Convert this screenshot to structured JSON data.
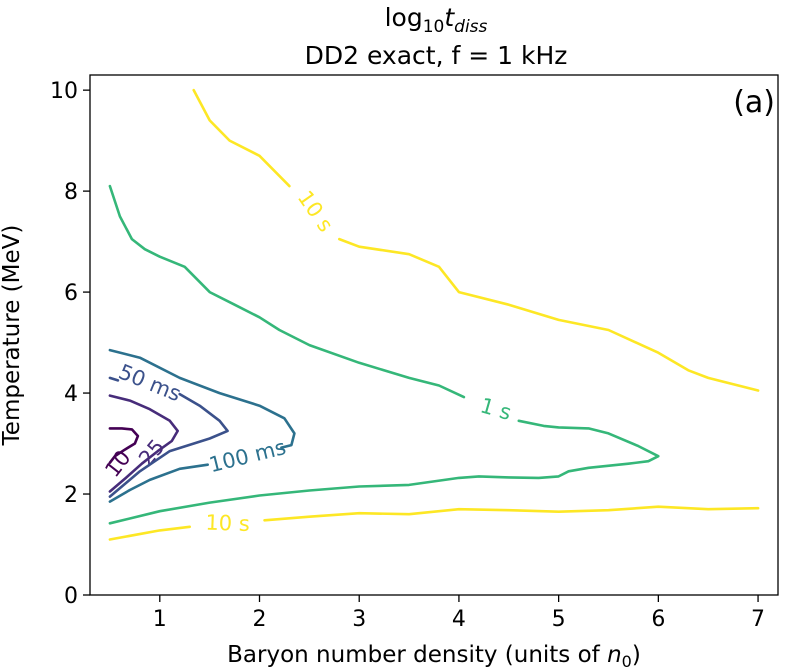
{
  "chart_data": {
    "type": "contour",
    "title": "log10 t_diss",
    "title_parts": {
      "prefix": "log",
      "base": "10",
      "symbol": "t",
      "subscript": "diss"
    },
    "subtitle": "DD2 exact, f = 1 kHz",
    "panel_label": "(a)",
    "xlabel": "Baryon number density (units of n0)",
    "xlabel_parts": {
      "text": "Baryon number density (units of ",
      "symbol": "n",
      "subscript": "0",
      "suffix": ")"
    },
    "ylabel": "Temperature (MeV)",
    "xlim": [
      0.3,
      7.2
    ],
    "ylim": [
      0,
      10.3
    ],
    "xticks": [
      1,
      2,
      3,
      4,
      5,
      6,
      7
    ],
    "yticks": [
      0,
      2,
      4,
      6,
      8,
      10
    ],
    "grid": false,
    "colormap": "viridis",
    "levels": [
      {
        "name": "10 ms",
        "label": "10",
        "color": "#440154",
        "paths": [
          [
            [
              0.5,
              3.3
            ],
            [
              0.62,
              3.3
            ],
            [
              0.72,
              3.28
            ],
            [
              0.78,
              3.15
            ],
            [
              0.75,
              3.0
            ],
            [
              0.65,
              2.88
            ],
            [
              0.55,
              2.75
            ],
            [
              0.5,
              2.62
            ]
          ]
        ],
        "label_pos": [
          0.58,
          2.6
        ],
        "label_angle": -52
      },
      {
        "name": "25 ms",
        "label": "25",
        "color": "#472c7a",
        "paths": [
          [
            [
              0.5,
              3.95
            ],
            [
              0.7,
              3.85
            ],
            [
              0.9,
              3.68
            ],
            [
              1.1,
              3.45
            ],
            [
              1.18,
              3.25
            ],
            [
              1.12,
              3.05
            ],
            [
              0.98,
              2.85
            ],
            [
              0.82,
              2.6
            ],
            [
              0.66,
              2.32
            ],
            [
              0.5,
              2.05
            ]
          ]
        ],
        "label_pos": [
          0.92,
          2.82
        ],
        "label_angle": -50
      },
      {
        "name": "50 ms",
        "label": "50 ms",
        "color": "#3b518b",
        "paths": [
          [
            [
              0.5,
              4.3
            ],
            [
              0.58,
              4.25
            ]
          ],
          [
            [
              1.2,
              3.98
            ],
            [
              1.4,
              3.75
            ],
            [
              1.6,
              3.45
            ],
            [
              1.68,
              3.25
            ],
            [
              1.5,
              3.1
            ],
            [
              1.1,
              2.85
            ],
            [
              0.8,
              2.45
            ],
            [
              0.5,
              1.95
            ]
          ]
        ],
        "label_pos": [
          0.9,
          4.2
        ],
        "label_angle": 22
      },
      {
        "name": "100 ms",
        "label": "100 ms",
        "color": "#2c718e",
        "paths": [
          [
            [
              0.5,
              4.85
            ],
            [
              0.8,
              4.7
            ],
            [
              1.2,
              4.3
            ],
            [
              1.6,
              4.0
            ],
            [
              2.0,
              3.75
            ],
            [
              2.25,
              3.5
            ],
            [
              2.35,
              3.2
            ],
            [
              2.32,
              2.97
            ],
            [
              2.22,
              2.92
            ]
          ],
          [
            [
              1.48,
              2.58
            ],
            [
              1.2,
              2.5
            ],
            [
              0.9,
              2.28
            ],
            [
              0.7,
              2.08
            ],
            [
              0.5,
              1.85
            ]
          ]
        ],
        "label_pos": [
          1.88,
          2.75
        ],
        "label_angle": -14
      },
      {
        "name": "1 s",
        "label": "1 s",
        "color": "#35b779",
        "paths": [
          [
            [
              0.5,
              8.1
            ],
            [
              0.6,
              7.5
            ],
            [
              0.72,
              7.05
            ],
            [
              0.85,
              6.85
            ],
            [
              1.0,
              6.7
            ],
            [
              1.25,
              6.5
            ],
            [
              1.5,
              6.0
            ],
            [
              1.75,
              5.75
            ],
            [
              2.0,
              5.5
            ],
            [
              2.2,
              5.25
            ],
            [
              2.5,
              4.95
            ],
            [
              3.0,
              4.6
            ],
            [
              3.5,
              4.3
            ],
            [
              3.8,
              4.15
            ],
            [
              4.05,
              3.92
            ]
          ],
          [
            [
              4.6,
              3.45
            ],
            [
              4.85,
              3.35
            ],
            [
              5.0,
              3.32
            ],
            [
              5.3,
              3.3
            ],
            [
              5.5,
              3.2
            ],
            [
              5.8,
              2.95
            ],
            [
              6.0,
              2.75
            ],
            [
              5.9,
              2.65
            ],
            [
              5.7,
              2.6
            ],
            [
              5.3,
              2.52
            ],
            [
              5.1,
              2.45
            ],
            [
              5.0,
              2.35
            ],
            [
              4.8,
              2.32
            ],
            [
              4.5,
              2.33
            ],
            [
              4.2,
              2.35
            ],
            [
              4.0,
              2.32
            ],
            [
              3.5,
              2.18
            ],
            [
              3.0,
              2.15
            ],
            [
              2.5,
              2.07
            ],
            [
              2.0,
              1.97
            ],
            [
              1.5,
              1.83
            ],
            [
              1.0,
              1.66
            ],
            [
              0.5,
              1.42
            ]
          ]
        ],
        "label_pos": [
          4.37,
          3.68
        ],
        "label_angle": 16
      },
      {
        "name": "10 s",
        "label": "10 s",
        "color": "#fde725",
        "paths": [
          [
            [
              1.34,
              10.0
            ],
            [
              1.5,
              9.4
            ],
            [
              1.7,
              9.0
            ],
            [
              2.0,
              8.7
            ],
            [
              2.3,
              8.1
            ]
          ],
          [
            [
              2.8,
              7.05
            ],
            [
              3.0,
              6.9
            ],
            [
              3.5,
              6.75
            ],
            [
              3.8,
              6.5
            ],
            [
              4.0,
              6.0
            ],
            [
              4.5,
              5.75
            ],
            [
              5.0,
              5.45
            ],
            [
              5.5,
              5.25
            ],
            [
              6.0,
              4.8
            ],
            [
              6.3,
              4.45
            ],
            [
              6.5,
              4.3
            ],
            [
              7.0,
              4.05
            ]
          ],
          [
            [
              0.5,
              1.1
            ],
            [
              1.0,
              1.28
            ],
            [
              1.3,
              1.35
            ]
          ],
          [
            [
              2.05,
              1.48
            ],
            [
              2.5,
              1.55
            ],
            [
              3.0,
              1.62
            ],
            [
              3.5,
              1.6
            ],
            [
              4.0,
              1.7
            ],
            [
              4.5,
              1.68
            ],
            [
              5.0,
              1.65
            ],
            [
              5.5,
              1.68
            ],
            [
              6.0,
              1.75
            ],
            [
              6.5,
              1.7
            ],
            [
              7.0,
              1.72
            ]
          ]
        ],
        "label_pos": [
          2.56,
          7.6
        ],
        "label_angle": 55
      },
      {
        "name": "10 s (lower)",
        "label": "10 s",
        "color": "#fde725",
        "paths": [],
        "label_pos": [
          1.68,
          1.42
        ],
        "label_angle": 2
      }
    ]
  }
}
